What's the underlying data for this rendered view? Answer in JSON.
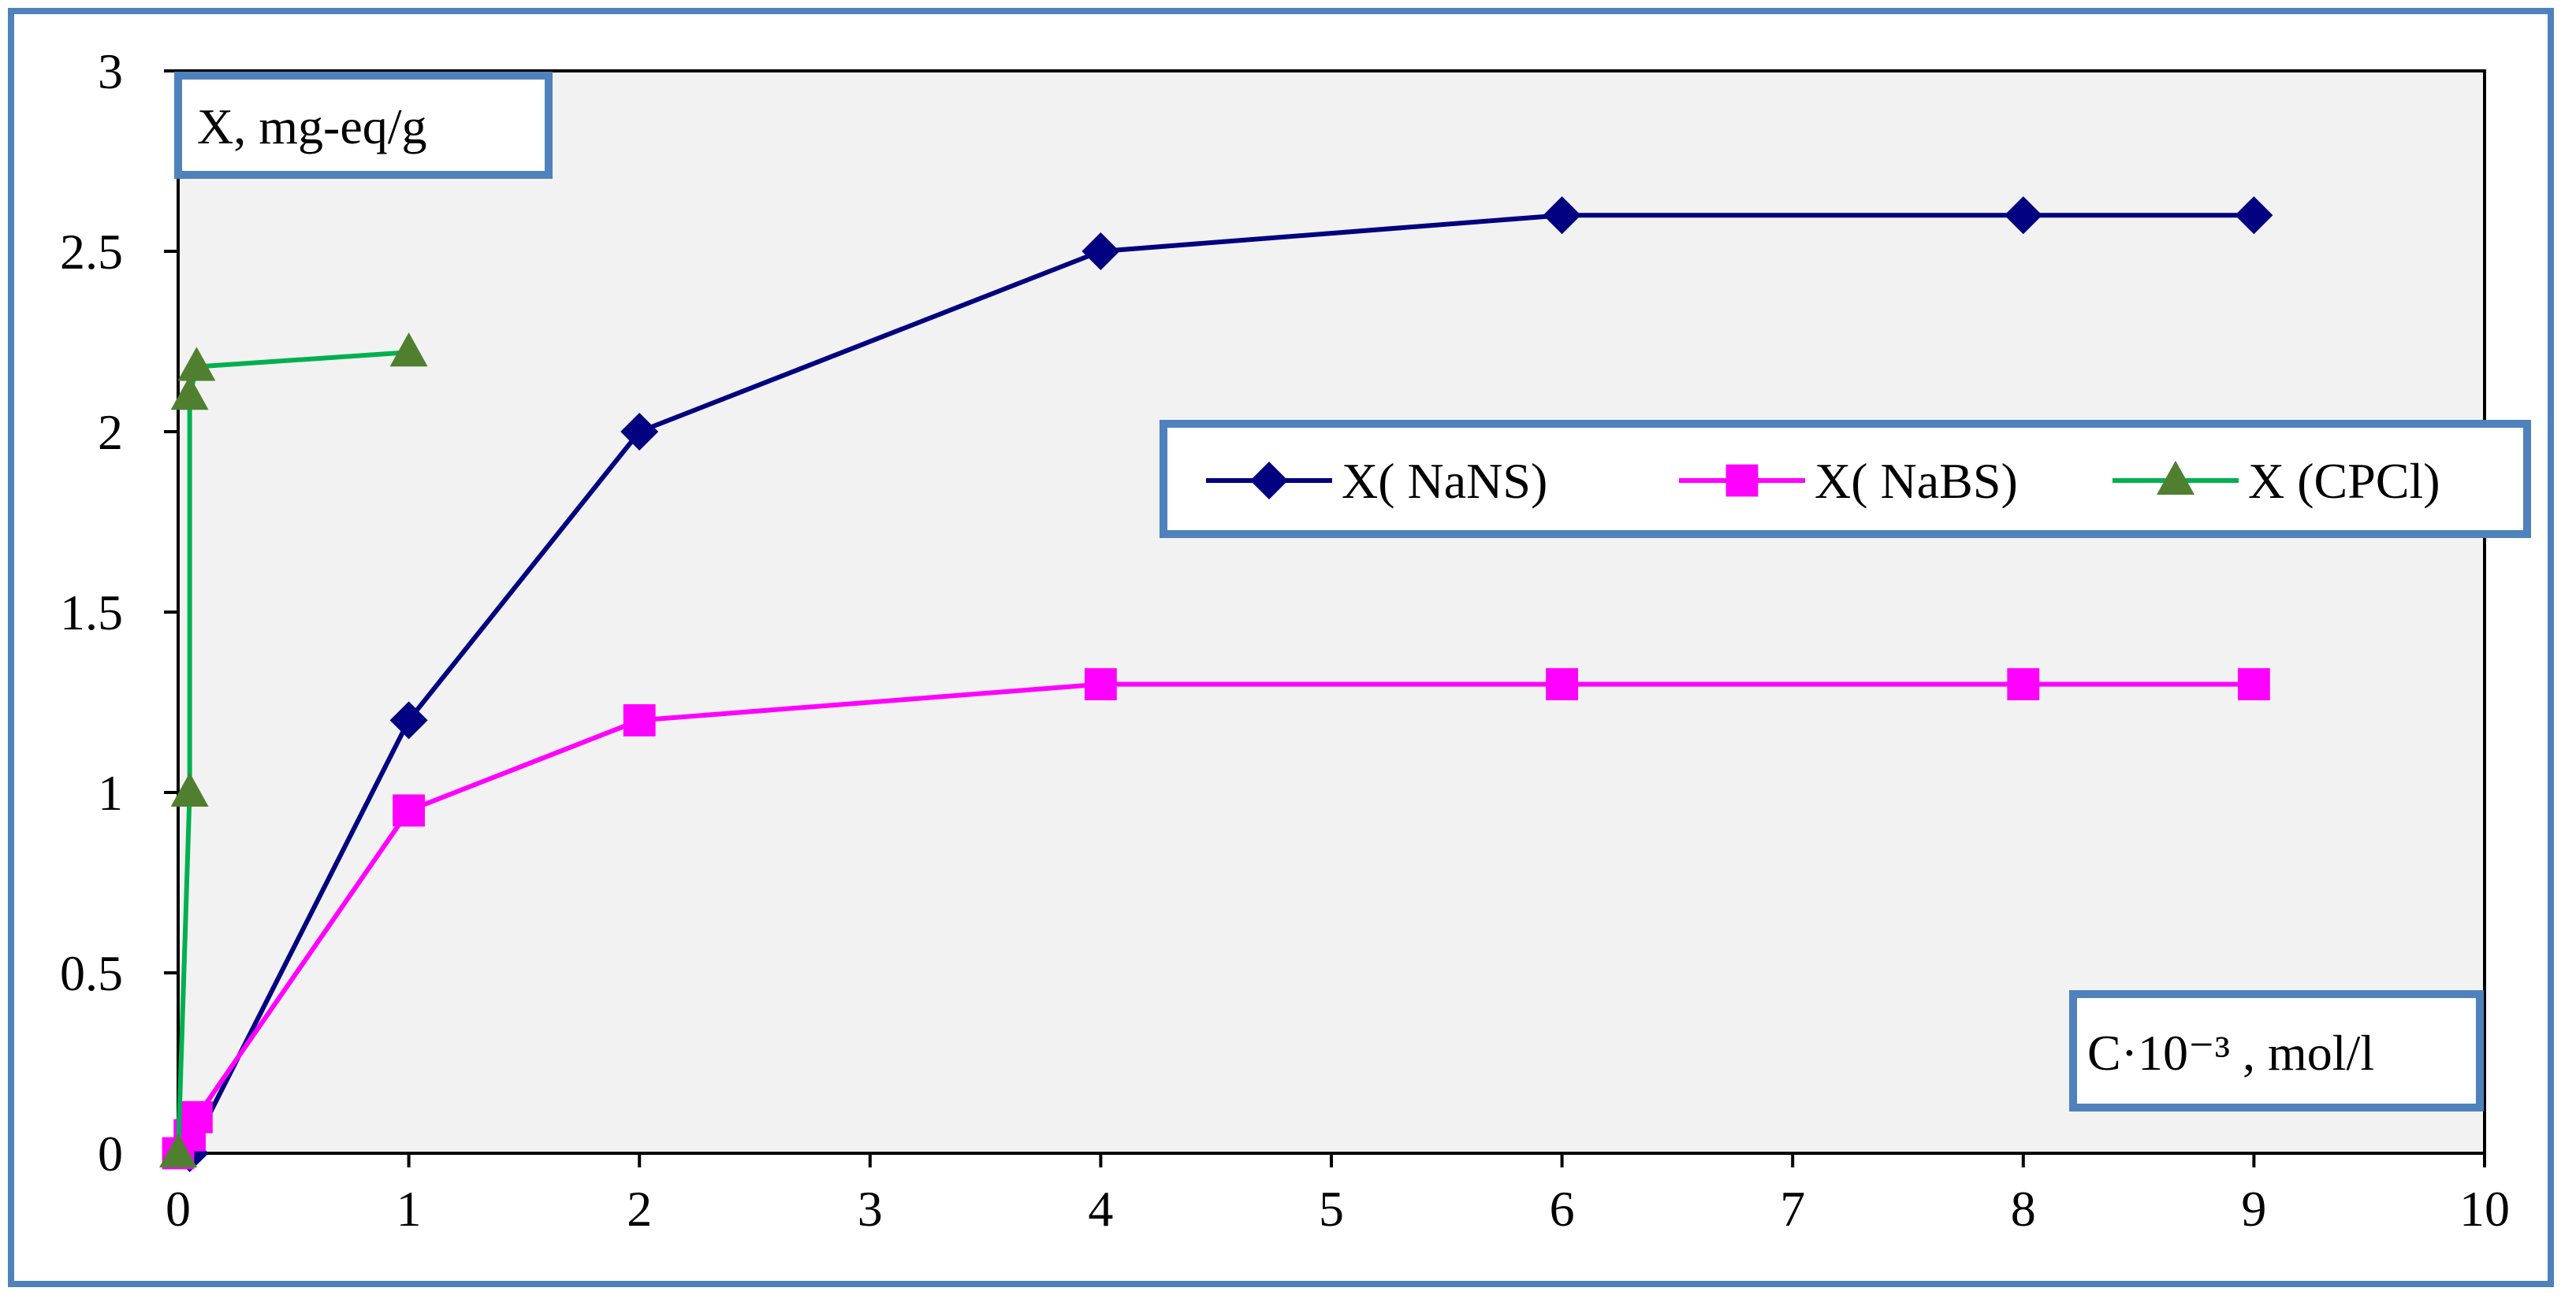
{
  "chart_data": {
    "type": "line",
    "ylabel": "X, mg-eq/g",
    "xlabel": "C·10⁻³ , mol/l",
    "xlim": [
      0,
      10
    ],
    "ylim": [
      0,
      3
    ],
    "x_ticks": [
      "0",
      "1",
      "2",
      "3",
      "4",
      "5",
      "6",
      "7",
      "8",
      "9",
      "10"
    ],
    "y_ticks": [
      "0",
      "0.5",
      "1",
      "1.5",
      "2",
      "2.5",
      "3"
    ],
    "grid": false,
    "legend_placement": "right-middle",
    "series": [
      {
        "name": "X( NaNS)",
        "color": "#000080",
        "marker": "diamond",
        "points": [
          [
            0.05,
            0
          ],
          [
            1,
            1.2
          ],
          [
            2,
            2
          ],
          [
            4,
            2.5
          ],
          [
            6,
            2.6
          ],
          [
            8,
            2.6
          ],
          [
            9,
            2.6
          ]
        ]
      },
      {
        "name": "X( NaBS)",
        "color": "#ff00ff",
        "marker": "square",
        "points": [
          [
            0,
            0
          ],
          [
            0.05,
            0.05
          ],
          [
            0.08,
            0.1
          ],
          [
            1,
            0.95
          ],
          [
            2,
            1.2
          ],
          [
            4,
            1.3
          ],
          [
            6,
            1.3
          ],
          [
            8,
            1.3
          ],
          [
            9,
            1.3
          ]
        ]
      },
      {
        "name": "X (CPCl)",
        "color": "#00b050",
        "marker_color": "#4f7f2f",
        "marker": "triangle",
        "points": [
          [
            0,
            0
          ],
          [
            0.05,
            1
          ],
          [
            0.05,
            2.1
          ],
          [
            0.08,
            2.18
          ],
          [
            1,
            2.22
          ]
        ]
      }
    ]
  },
  "colors": {
    "frame_border": "#4f81bd",
    "plot_background": "#f2f2f2",
    "axis": "#000000"
  }
}
